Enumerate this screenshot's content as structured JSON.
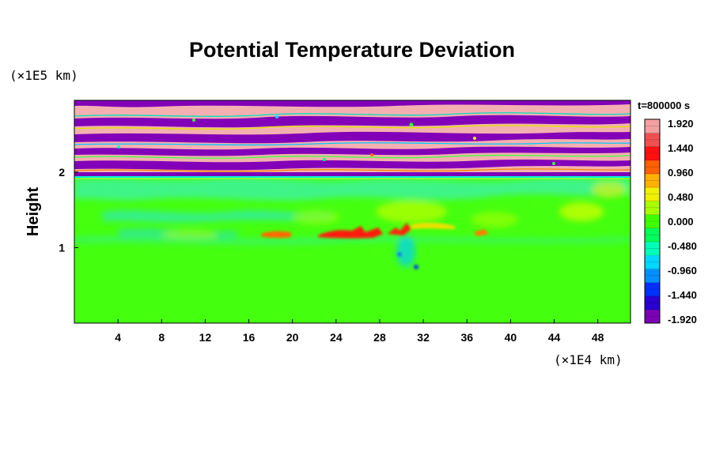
{
  "chart_data": {
    "type": "heatmap",
    "title": "Potential Temperature Deviation",
    "ylabel": "Height",
    "xlabel": "",
    "x_unit": "(×1E4 km)",
    "y_unit": "(×1E5 km)",
    "time_label": "t=800000 s",
    "xlim": [
      0,
      51
    ],
    "ylim": [
      0,
      2.95
    ],
    "x_ticks": [
      4,
      8,
      12,
      16,
      20,
      24,
      28,
      32,
      36,
      40,
      44,
      48
    ],
    "y_ticks": [
      1,
      2
    ],
    "colorbar": {
      "min": -2.0,
      "max": 2.0,
      "tick_values": [
        1.92,
        1.44,
        0.96,
        0.48,
        0.0,
        -0.48,
        -0.96,
        -1.44,
        -1.92
      ],
      "tick_labels": [
        "1.920",
        "1.440",
        "0.960",
        "0.480",
        "0.000",
        "-0.480",
        "-0.960",
        "-1.440",
        "-1.920"
      ],
      "colors": [
        "#7b00b4",
        "#2a00d0",
        "#0030ff",
        "#0090ff",
        "#00d8ff",
        "#00ffb8",
        "#00ff5a",
        "#40ff00",
        "#a8ff00",
        "#f0f000",
        "#ffb000",
        "#ff6000",
        "#ff1010",
        "#f05050",
        "#f4a0a0"
      ]
    },
    "regions": [
      {
        "x": [
          0,
          51
        ],
        "y": [
          1.95,
          2.95
        ],
        "value_range": [
          -2.0,
          2.0
        ],
        "description_key": "alternating"
      },
      {
        "x": [
          0,
          51
        ],
        "y": [
          0,
          1.95
        ],
        "value_range": [
          -0.5,
          0.2
        ]
      },
      {
        "x": [
          22.5,
          26.5
        ],
        "y": [
          1.1,
          1.23
        ],
        "value_range": [
          1.0,
          1.9
        ]
      },
      {
        "x": [
          18,
          20.5
        ],
        "y": [
          1.1,
          1.18
        ],
        "value_range": [
          0.8,
          1.4
        ]
      },
      {
        "x": [
          29.5,
          31
        ],
        "y": [
          1.12,
          1.3
        ],
        "value_range": [
          0.8,
          1.6
        ]
      }
    ]
  }
}
